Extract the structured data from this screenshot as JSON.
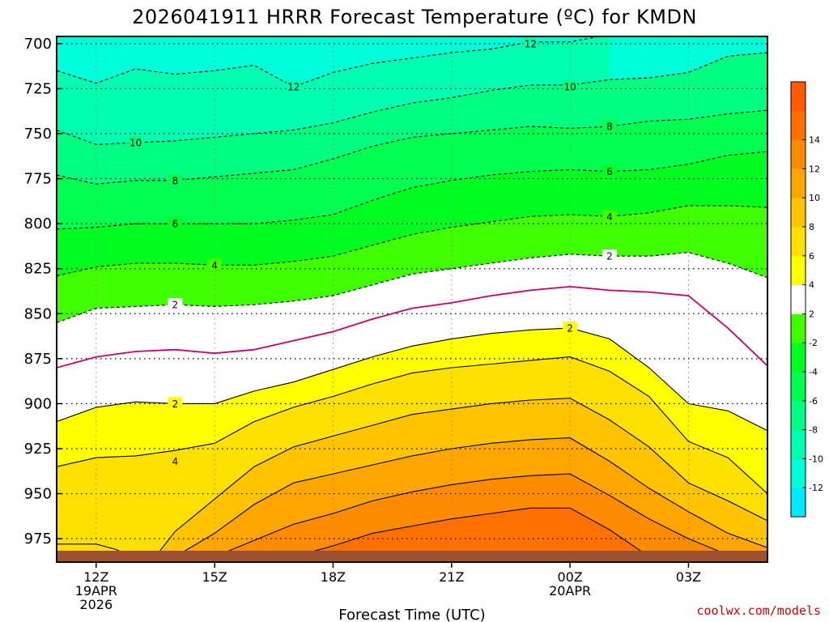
{
  "chart_data": {
    "type": "heatmap",
    "title": "2026041911 HRRR Forecast Temperature (ºC) for KMDN",
    "xlabel": "Forecast Time (UTC)",
    "ylabel": "",
    "credit": "coolwx.com/models",
    "x_ticks": [
      {
        "hour": 0,
        "lines": [
          "12Z",
          "19APR",
          "2026"
        ]
      },
      {
        "hour": 3,
        "lines": [
          "15Z"
        ]
      },
      {
        "hour": 6,
        "lines": [
          "18Z"
        ]
      },
      {
        "hour": 9,
        "lines": [
          "21Z"
        ]
      },
      {
        "hour": 12,
        "lines": [
          "00Z",
          "20APR"
        ]
      },
      {
        "hour": 15,
        "lines": [
          "03Z"
        ]
      }
    ],
    "y_ticks": [
      700,
      725,
      750,
      775,
      800,
      825,
      850,
      875,
      900,
      925,
      950,
      975
    ],
    "xlim": [
      -1,
      17
    ],
    "ylim": [
      696,
      988
    ],
    "grid": "dotted",
    "colorbar": {
      "levels": [
        -14,
        -12,
        -10,
        -8,
        -6,
        -4,
        -2,
        2,
        4,
        6,
        8,
        10,
        12,
        14,
        16
      ],
      "labels": [
        "-12",
        "-10",
        "-8",
        "-6",
        "-4",
        "-2",
        "2",
        "4",
        "6",
        "8",
        "10",
        "12",
        "14"
      ],
      "colors": [
        "#00e8ff",
        "#00ffd9",
        "#00ffb0",
        "#00ff80",
        "#00ff50",
        "#00ff20",
        "#40ff00",
        "#ffffff",
        "#ffff00",
        "#ffe000",
        "#ffc300",
        "#ffa500",
        "#ff8c00",
        "#ff7000",
        "#ff5a00"
      ]
    },
    "contours": [
      {
        "value": -12,
        "label": "12",
        "dashed": true,
        "points": [
          [
            -1,
            715
          ],
          [
            0,
            722
          ],
          [
            1,
            714
          ],
          [
            2,
            717
          ],
          [
            3,
            715
          ],
          [
            4,
            712
          ],
          [
            5,
            724
          ],
          [
            6,
            716
          ],
          [
            7,
            711
          ],
          [
            8,
            708
          ],
          [
            9,
            705
          ],
          [
            10,
            703
          ],
          [
            11,
            699
          ],
          [
            12,
            699
          ],
          [
            13,
            695
          ]
        ],
        "labels": [
          [
            5,
            724
          ],
          [
            11,
            700
          ]
        ]
      },
      {
        "value": -10,
        "label": "10",
        "dashed": true,
        "points": [
          [
            -1,
            748
          ],
          [
            0,
            756
          ],
          [
            1,
            755
          ],
          [
            2,
            754
          ],
          [
            3,
            752
          ],
          [
            4,
            750
          ],
          [
            5,
            748
          ],
          [
            6,
            744
          ],
          [
            7,
            738
          ],
          [
            8,
            733
          ],
          [
            9,
            730
          ],
          [
            10,
            726
          ],
          [
            11,
            723
          ],
          [
            12,
            723
          ],
          [
            13,
            720
          ],
          [
            14,
            719
          ],
          [
            15,
            716
          ],
          [
            16,
            707
          ],
          [
            17,
            705
          ]
        ],
        "labels": [
          [
            1,
            755
          ],
          [
            12,
            724
          ]
        ]
      },
      {
        "value": -8,
        "label": "8",
        "dashed": true,
        "points": [
          [
            -1,
            773
          ],
          [
            0,
            778
          ],
          [
            1,
            776
          ],
          [
            2,
            776
          ],
          [
            3,
            774
          ],
          [
            4,
            772
          ],
          [
            5,
            770
          ],
          [
            6,
            764
          ],
          [
            7,
            757
          ],
          [
            8,
            752
          ],
          [
            9,
            750
          ],
          [
            10,
            748
          ],
          [
            11,
            746
          ],
          [
            12,
            747
          ],
          [
            13,
            746
          ],
          [
            14,
            743
          ],
          [
            15,
            742
          ],
          [
            16,
            739
          ],
          [
            17,
            737
          ]
        ],
        "labels": [
          [
            2,
            776
          ],
          [
            13,
            746
          ]
        ]
      },
      {
        "value": -6,
        "label": "6",
        "dashed": true,
        "points": [
          [
            -1,
            803
          ],
          [
            0,
            802
          ],
          [
            1,
            800
          ],
          [
            2,
            800
          ],
          [
            3,
            800
          ],
          [
            4,
            800
          ],
          [
            5,
            798
          ],
          [
            6,
            795
          ],
          [
            7,
            787
          ],
          [
            8,
            780
          ],
          [
            9,
            776
          ],
          [
            10,
            773
          ],
          [
            11,
            771
          ],
          [
            12,
            770
          ],
          [
            13,
            771
          ],
          [
            14,
            770
          ],
          [
            15,
            767
          ],
          [
            16,
            762
          ],
          [
            17,
            760
          ]
        ],
        "labels": [
          [
            2,
            800
          ],
          [
            13,
            771
          ]
        ]
      },
      {
        "value": -4,
        "label": "4",
        "dashed": true,
        "points": [
          [
            -1,
            829
          ],
          [
            0,
            824
          ],
          [
            1,
            822
          ],
          [
            2,
            822
          ],
          [
            3,
            823
          ],
          [
            4,
            823
          ],
          [
            5,
            821
          ],
          [
            6,
            818
          ],
          [
            7,
            812
          ],
          [
            8,
            806
          ],
          [
            9,
            802
          ],
          [
            10,
            799
          ],
          [
            11,
            796
          ],
          [
            12,
            795
          ],
          [
            13,
            796
          ],
          [
            14,
            794
          ],
          [
            15,
            790
          ],
          [
            16,
            790
          ],
          [
            17,
            791
          ]
        ],
        "labels": [
          [
            3,
            823
          ],
          [
            13,
            796
          ]
        ]
      },
      {
        "value": -2,
        "label": "2",
        "dashed": true,
        "points": [
          [
            -1,
            855
          ],
          [
            0,
            847
          ],
          [
            1,
            846
          ],
          [
            2,
            845
          ],
          [
            3,
            846
          ],
          [
            4,
            845
          ],
          [
            5,
            843
          ],
          [
            6,
            840
          ],
          [
            7,
            834
          ],
          [
            8,
            828
          ],
          [
            9,
            825
          ],
          [
            10,
            822
          ],
          [
            11,
            819
          ],
          [
            12,
            817
          ],
          [
            13,
            818
          ],
          [
            14,
            818
          ],
          [
            15,
            816
          ],
          [
            16,
            822
          ],
          [
            17,
            830
          ]
        ],
        "labels": [
          [
            2,
            845
          ],
          [
            13,
            818
          ]
        ]
      },
      {
        "value": 0,
        "label": "",
        "dashed": false,
        "points": [
          [
            -1,
            880
          ],
          [
            0,
            874
          ],
          [
            1,
            871
          ],
          [
            2,
            870
          ],
          [
            3,
            872
          ],
          [
            4,
            870
          ],
          [
            5,
            865
          ],
          [
            6,
            860
          ],
          [
            7,
            853
          ],
          [
            8,
            847
          ],
          [
            9,
            844
          ],
          [
            10,
            840
          ],
          [
            11,
            837
          ],
          [
            12,
            835
          ],
          [
            13,
            837
          ],
          [
            14,
            838
          ],
          [
            15,
            840
          ],
          [
            16,
            858
          ],
          [
            17,
            879
          ]
        ],
        "labels": []
      },
      {
        "value": 2,
        "label": "2",
        "dashed": false,
        "points": [
          [
            -1,
            910
          ],
          [
            0,
            902
          ],
          [
            1,
            899
          ],
          [
            2,
            900
          ],
          [
            3,
            900
          ],
          [
            4,
            893
          ],
          [
            5,
            888
          ],
          [
            6,
            881
          ],
          [
            7,
            874
          ],
          [
            8,
            868
          ],
          [
            9,
            864
          ],
          [
            10,
            861
          ],
          [
            11,
            859
          ],
          [
            12,
            858
          ],
          [
            13,
            864
          ],
          [
            14,
            880
          ],
          [
            15,
            900
          ],
          [
            16,
            904
          ],
          [
            17,
            915
          ]
        ],
        "labels": [
          [
            2,
            900
          ],
          [
            12,
            858
          ]
        ]
      },
      {
        "value": 4,
        "label": "4",
        "dashed": false,
        "points": [
          [
            -1,
            935
          ],
          [
            0,
            930
          ],
          [
            1,
            929
          ],
          [
            2,
            926
          ],
          [
            3,
            922
          ],
          [
            4,
            910
          ],
          [
            5,
            902
          ],
          [
            6,
            896
          ],
          [
            7,
            889
          ],
          [
            8,
            883
          ],
          [
            9,
            880
          ],
          [
            10,
            878
          ],
          [
            11,
            876
          ],
          [
            12,
            874
          ],
          [
            13,
            882
          ],
          [
            14,
            896
          ],
          [
            15,
            921
          ],
          [
            16,
            930
          ],
          [
            17,
            950
          ]
        ],
        "labels": [
          [
            2,
            932
          ]
        ]
      },
      {
        "value": 6,
        "label": "",
        "dashed": false,
        "points": [
          [
            1.5,
            985
          ],
          [
            2,
            971
          ],
          [
            3,
            953
          ],
          [
            4,
            935
          ],
          [
            5,
            924
          ],
          [
            6,
            918
          ],
          [
            7,
            912
          ],
          [
            8,
            906
          ],
          [
            9,
            903
          ],
          [
            10,
            900
          ],
          [
            11,
            898
          ],
          [
            12,
            897
          ],
          [
            13,
            909
          ],
          [
            14,
            924
          ],
          [
            15,
            944
          ],
          [
            16,
            954
          ],
          [
            17,
            965
          ]
        ],
        "labels": []
      },
      {
        "value": 8,
        "label": "",
        "dashed": false,
        "points": [
          [
            2,
            985
          ],
          [
            3,
            972
          ],
          [
            4,
            956
          ],
          [
            5,
            944
          ],
          [
            6,
            939
          ],
          [
            7,
            934
          ],
          [
            8,
            929
          ],
          [
            9,
            925
          ],
          [
            10,
            922
          ],
          [
            11,
            920
          ],
          [
            12,
            919
          ],
          [
            13,
            932
          ],
          [
            14,
            947
          ],
          [
            15,
            960
          ],
          [
            16,
            972
          ],
          [
            17,
            980
          ]
        ],
        "labels": []
      },
      {
        "value": 10,
        "label": "",
        "dashed": false,
        "points": [
          [
            3,
            985
          ],
          [
            4,
            976
          ],
          [
            5,
            967
          ],
          [
            6,
            961
          ],
          [
            7,
            954
          ],
          [
            8,
            949
          ],
          [
            9,
            945
          ],
          [
            10,
            942
          ],
          [
            11,
            940
          ],
          [
            12,
            939
          ],
          [
            13,
            951
          ],
          [
            14,
            964
          ],
          [
            15,
            975
          ],
          [
            16,
            984
          ]
        ],
        "labels": []
      },
      {
        "value": 12,
        "label": "",
        "dashed": false,
        "points": [
          [
            5,
            985
          ],
          [
            6,
            979
          ],
          [
            7,
            972
          ],
          [
            8,
            968
          ],
          [
            9,
            964
          ],
          [
            10,
            961
          ],
          [
            11,
            958
          ],
          [
            12,
            958
          ],
          [
            13,
            970
          ],
          [
            14,
            985
          ]
        ],
        "labels": []
      }
    ],
    "small_contour": {
      "value": 6,
      "points": [
        [
          -1,
          978
        ],
        [
          0,
          978
        ],
        [
          0.5,
          981
        ],
        [
          1,
          986
        ]
      ]
    }
  }
}
